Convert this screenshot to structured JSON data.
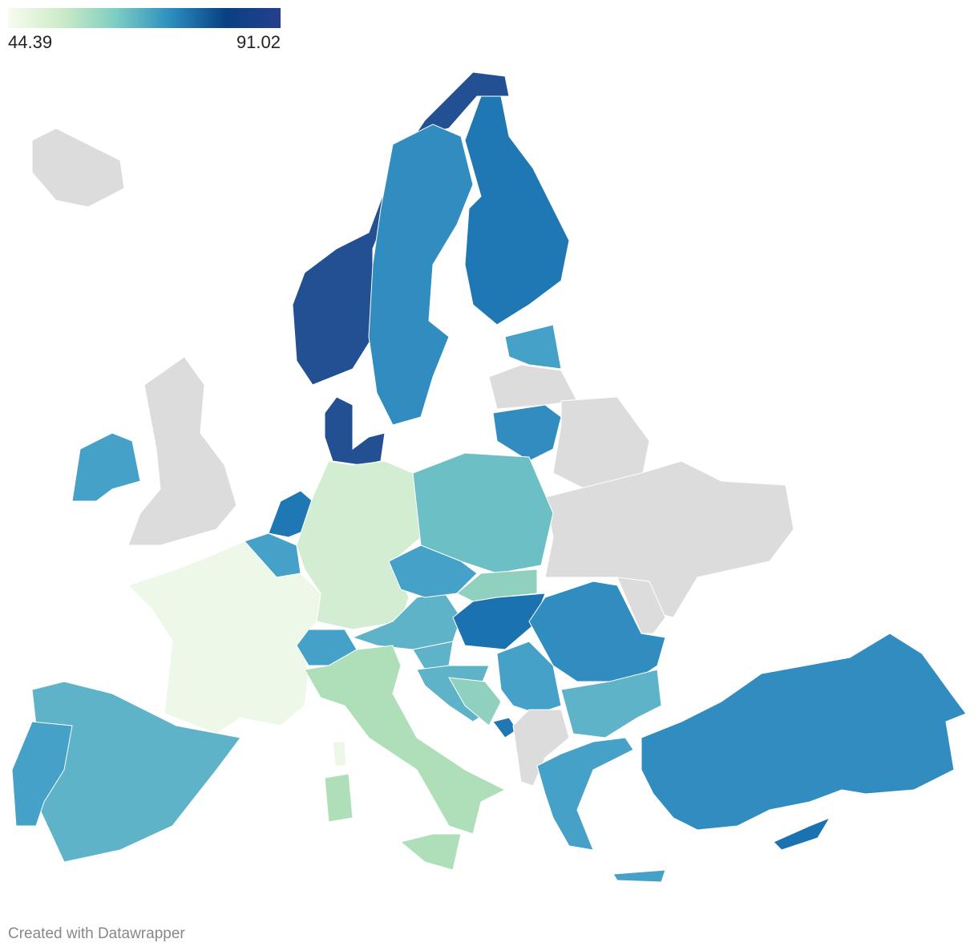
{
  "legend": {
    "min": 44.39,
    "max": 91.02,
    "colors": [
      "#f7fcf0",
      "#ccebc5",
      "#7bccc4",
      "#2b8cbe",
      "#084081",
      "#253f8f"
    ]
  },
  "footer": "Created with Datawrapper"
}
